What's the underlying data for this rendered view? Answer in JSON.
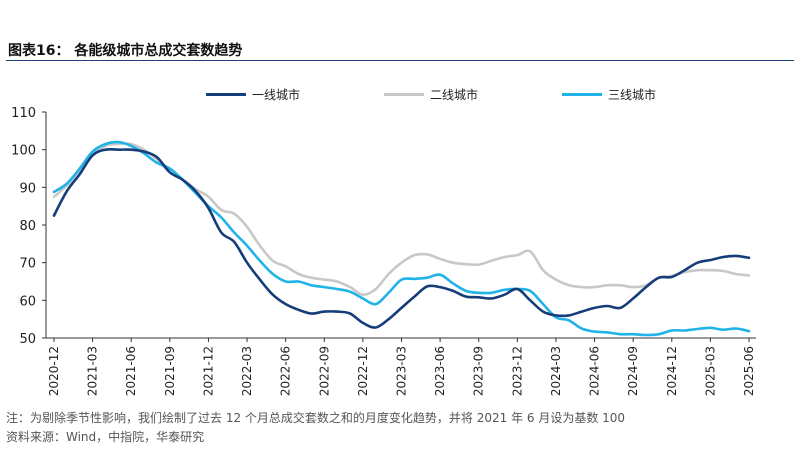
{
  "header": {
    "title": "图表16：   各能级城市总成交套数趋势"
  },
  "footer": {
    "note": "注：为剔除季节性影响，我们绘制了过去 12 个月总成交套数之和的月度变化趋势，并将 2021 年 6 月设为基数 100",
    "source": "资料来源：Wind，中指院，华泰研究"
  },
  "chart_data": {
    "type": "line",
    "title": "",
    "xlabel": "",
    "ylabel": "",
    "ylim": [
      50,
      110
    ],
    "yticks": [
      50,
      60,
      70,
      80,
      90,
      100,
      110
    ],
    "grid": false,
    "legend_position": "top-center",
    "x": [
      "2020-12",
      "2021-01",
      "2021-02",
      "2021-03",
      "2021-04",
      "2021-05",
      "2021-06",
      "2021-07",
      "2021-08",
      "2021-09",
      "2021-10",
      "2021-11",
      "2021-12",
      "2022-01",
      "2022-02",
      "2022-03",
      "2022-04",
      "2022-05",
      "2022-06",
      "2022-07",
      "2022-08",
      "2022-09",
      "2022-10",
      "2022-11",
      "2022-12",
      "2023-01",
      "2023-02",
      "2023-03",
      "2023-04",
      "2023-05",
      "2023-06",
      "2023-07",
      "2023-08",
      "2023-09",
      "2023-10",
      "2023-11",
      "2023-12",
      "2024-01",
      "2024-02",
      "2024-03",
      "2024-04",
      "2024-05",
      "2024-06",
      "2024-07",
      "2024-08",
      "2024-09",
      "2024-10",
      "2024-11",
      "2024-12",
      "2025-01",
      "2025-02",
      "2025-03",
      "2025-04",
      "2025-05",
      "2025-06"
    ],
    "xticks": [
      "2020-12",
      "2021-03",
      "2021-06",
      "2021-09",
      "2021-12",
      "2022-03",
      "2022-06",
      "2022-09",
      "2022-12",
      "2023-03",
      "2023-06",
      "2023-09",
      "2023-12",
      "2024-03",
      "2024-06",
      "2024-09",
      "2024-12",
      "2025-03",
      "2025-06"
    ],
    "series": [
      {
        "name": "一线城市",
        "color": "#163d7a",
        "values": [
          82.5,
          89,
          93.5,
          98.5,
          100,
          100,
          100,
          99.5,
          98,
          94,
          92,
          89,
          84.5,
          78,
          75.5,
          70,
          65.5,
          61.5,
          59,
          57.5,
          56.5,
          57,
          57,
          56.5,
          54,
          52.8,
          55,
          58,
          61,
          63.7,
          63.5,
          62.5,
          61,
          60.8,
          60.5,
          61.5,
          63,
          60,
          57,
          56,
          56,
          57,
          58,
          58.5,
          58,
          60.5,
          63.5,
          66,
          66.2,
          68,
          70,
          70.7,
          71.5,
          71.8,
          71.3
        ]
      },
      {
        "name": "二线城市",
        "color": "#c8c8c8",
        "values": [
          87.5,
          90.5,
          94.5,
          98.5,
          101,
          101.5,
          101.5,
          100,
          97.5,
          94,
          92,
          89.5,
          87.5,
          84,
          83,
          79.5,
          74.5,
          70.5,
          69,
          67,
          66,
          65.5,
          65,
          63.5,
          61.5,
          63,
          67,
          70,
          72,
          72.2,
          71,
          70,
          69.6,
          69.5,
          70.5,
          71.5,
          72,
          73,
          68,
          65.5,
          64,
          63.5,
          63.5,
          64,
          64,
          63.5,
          64,
          66,
          66.5,
          67.5,
          68,
          68,
          67.8,
          67,
          66.6
        ]
      },
      {
        "name": "三线城市",
        "color": "#1fb3e8",
        "values": [
          88.8,
          91,
          95,
          99.5,
          101.5,
          102,
          101,
          99,
          96.5,
          95,
          92,
          88.5,
          85,
          82,
          78,
          74.5,
          70.5,
          67,
          65,
          65,
          64,
          63.5,
          63,
          62.3,
          60.5,
          59,
          62,
          65.5,
          65.7,
          66,
          66.8,
          64.5,
          62.5,
          62,
          62,
          62.8,
          63,
          62.5,
          59,
          55.5,
          54.7,
          52.5,
          51.7,
          51.5,
          51,
          51,
          50.8,
          51,
          52,
          52,
          52.4,
          52.7,
          52.2,
          52.5,
          51.8
        ]
      }
    ]
  }
}
